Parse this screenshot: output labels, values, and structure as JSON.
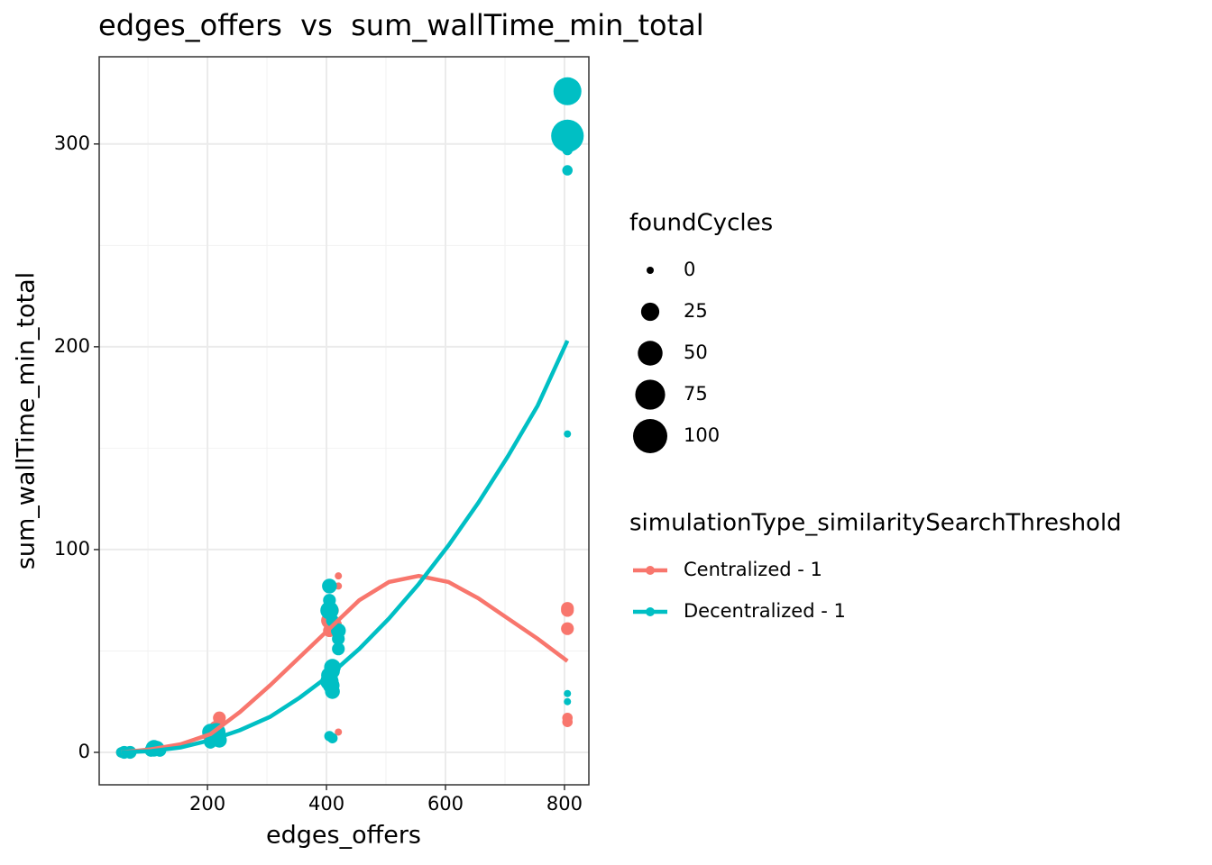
{
  "chart_data": {
    "type": "scatter",
    "title": "edges_offers  vs  sum_wallTime_min_total",
    "x_label": "edges_offers",
    "y_label": "sum_wallTime_min_total",
    "xlim": [
      18,
      841
    ],
    "ylim": [
      -16,
      343
    ],
    "xticks": [
      200,
      400,
      600,
      800
    ],
    "yticks": [
      0,
      100,
      200,
      300
    ],
    "x_minor_grid": [
      100,
      300,
      500,
      700
    ],
    "y_minor_grid": [
      50,
      150,
      250
    ],
    "grid": true,
    "size_title": "foundCycles",
    "size_breaks": [
      0,
      25,
      50,
      75,
      100
    ],
    "color_title": "simulationType_similaritySearchThreshold",
    "series": [
      {
        "name": "Centralized - 1",
        "color": "#F8766D",
        "x": [
          55,
          65,
          110,
          205,
          215,
          220,
          220,
          405,
          405,
          410,
          420,
          420,
          415,
          420,
          805,
          805,
          805,
          805,
          805
        ],
        "y": [
          0,
          0,
          1,
          8,
          12,
          17,
          14,
          65,
          60,
          70,
          87,
          82,
          63,
          10,
          70,
          71,
          61,
          17,
          15
        ],
        "sizes": [
          5,
          5,
          5,
          15,
          15,
          10,
          5,
          20,
          10,
          10,
          0,
          0,
          10,
          0,
          10,
          10,
          10,
          5,
          5
        ],
        "trend_x": [
          55,
          105,
          155,
          205,
          255,
          305,
          355,
          405,
          455,
          505,
          555,
          605,
          655,
          705,
          755,
          805
        ],
        "trend_y": [
          0,
          1.5,
          4,
          9,
          20,
          33,
          47,
          61,
          75,
          84,
          87,
          84,
          76,
          66,
          56,
          45
        ]
      },
      {
        "name": "Decentralized - 1",
        "color": "#00BFC4",
        "x": [
          55,
          60,
          70,
          105,
          110,
          120,
          115,
          205,
          210,
          215,
          220,
          205,
          405,
          405,
          405,
          410,
          410,
          405,
          405,
          410,
          408,
          410,
          405,
          410,
          420,
          420,
          420,
          805,
          805,
          805,
          805,
          805,
          805,
          805,
          805
        ],
        "y": [
          0,
          0,
          0,
          1,
          2,
          1,
          2,
          5,
          8,
          10,
          6,
          10,
          82,
          75,
          70,
          65,
          42,
          38,
          35,
          30,
          33,
          40,
          8,
          7,
          60,
          51,
          56,
          326,
          304,
          300,
          297,
          287,
          157,
          29,
          25
        ],
        "sizes": [
          5,
          10,
          10,
          10,
          20,
          10,
          15,
          10,
          20,
          25,
          15,
          20,
          15,
          10,
          25,
          10,
          20,
          20,
          25,
          15,
          20,
          15,
          5,
          5,
          15,
          10,
          10,
          65,
          90,
          25,
          5,
          5,
          0,
          0,
          0
        ],
        "trend_x": [
          55,
          105,
          155,
          205,
          255,
          305,
          355,
          405,
          455,
          505,
          555,
          605,
          655,
          705,
          755,
          805
        ],
        "trend_y": [
          0,
          0.6,
          2.4,
          6,
          11,
          17.5,
          27,
          38,
          51,
          66,
          83,
          102,
          123,
          146,
          171,
          203
        ]
      }
    ]
  }
}
